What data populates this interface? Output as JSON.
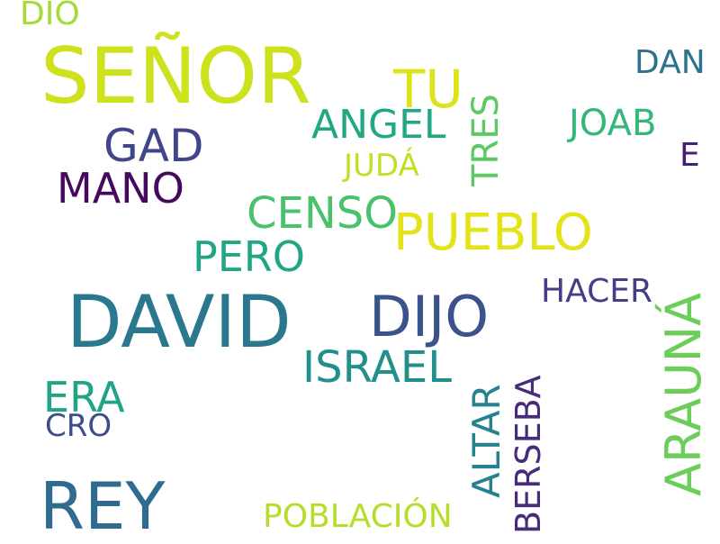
{
  "words": {
    "senor": {
      "text": "SEÑOR",
      "color": "#cde11d"
    },
    "david": {
      "text": "DAVID",
      "color": "#2a788e"
    },
    "rey": {
      "text": "REY",
      "color": "#2f6b8e"
    },
    "dijo": {
      "text": "DIJO",
      "color": "#3b528b"
    },
    "pueblo": {
      "text": "PUEBLO",
      "color": "#e2e418"
    },
    "tu": {
      "text": "TU",
      "color": "#dde318"
    },
    "gad": {
      "text": "GAD",
      "color": "#404688"
    },
    "mano": {
      "text": "MANO",
      "color": "#46085c"
    },
    "censo": {
      "text": "CENSO",
      "color": "#4ac16d"
    },
    "angel": {
      "text": "ANGEL",
      "color": "#22a785"
    },
    "pero": {
      "text": "PERO",
      "color": "#21a685"
    },
    "israel": {
      "text": "ISRAEL",
      "color": "#21908d"
    },
    "era": {
      "text": "ERA",
      "color": "#20a386"
    },
    "cro": {
      "text": "CRO",
      "color": "#3e4c8a"
    },
    "joab": {
      "text": "JOAB",
      "color": "#35b779"
    },
    "dan": {
      "text": "DAN",
      "color": "#2c728e"
    },
    "e": {
      "text": "E",
      "color": "#482173"
    },
    "hacer": {
      "text": "HACER",
      "color": "#433e85"
    },
    "juda": {
      "text": "JUDÁ",
      "color": "#c2df23"
    },
    "dio": {
      "text": "DIO",
      "color": "#a5db36"
    },
    "poblacion": {
      "text": "POBLACIÓN",
      "color": "#b5de2b"
    },
    "tres": {
      "text": "TRES",
      "color": "#5ec962"
    },
    "altar": {
      "text": "ALTAR",
      "color": "#26828e"
    },
    "berseba": {
      "text": "BERSEBA",
      "color": "#472c7a"
    },
    "arauna": {
      "text": "ARAUNÁ",
      "color": "#6ccd5a"
    }
  }
}
